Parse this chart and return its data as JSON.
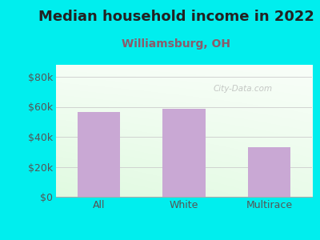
{
  "title": "Median household income in 2022",
  "subtitle": "Williamsburg, OH",
  "categories": [
    "All",
    "White",
    "Multirace"
  ],
  "values": [
    56500,
    58500,
    33000
  ],
  "bar_color": "#C9A8D4",
  "title_color": "#222222",
  "subtitle_color": "#8B5A6A",
  "background_color": "#00EEEE",
  "yticks": [
    0,
    20000,
    40000,
    60000,
    80000
  ],
  "ytick_labels": [
    "$0",
    "$20k",
    "$40k",
    "$60k",
    "$80k"
  ],
  "ylim": [
    0,
    88000
  ],
  "watermark": "City-Data.com",
  "title_fontsize": 13,
  "subtitle_fontsize": 10,
  "tick_fontsize": 9,
  "tick_color": "#555555"
}
